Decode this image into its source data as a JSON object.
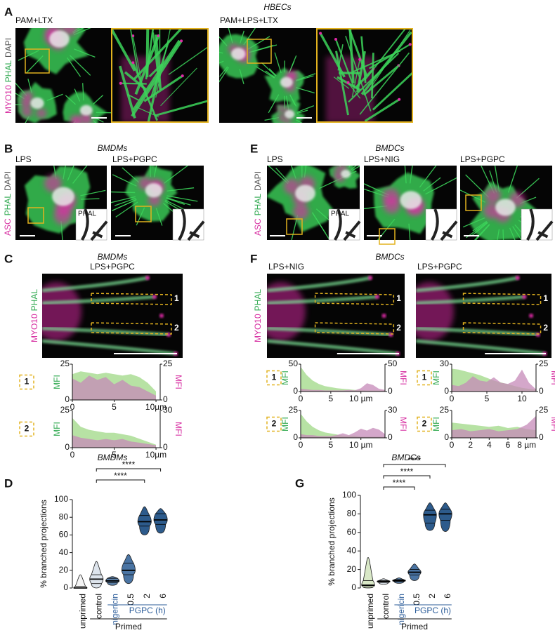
{
  "figure": {
    "profile_colors": [
      "#9fd886",
      "#c58ab8"
    ],
    "A": {
      "letter": "A",
      "title": "HBECs",
      "stain": [
        "MYO10",
        "PHAL",
        "DAPI"
      ],
      "conditions": [
        "PAM+LTX",
        "PAM+LPS+LTX"
      ]
    },
    "B": {
      "letter": "B",
      "title": "BMDMs",
      "stain": [
        "ASC",
        "PHAL",
        "DAPI"
      ],
      "conditions": [
        "LPS",
        "LPS+PGPC"
      ],
      "inset_label": "PHAL"
    },
    "E": {
      "letter": "E",
      "title": "BMDCs",
      "stain": [
        "ASC",
        "PHAL",
        "DAPI"
      ],
      "conditions": [
        "LPS",
        "LPS+NIG",
        "LPS+PGPC"
      ],
      "inset_label": "PHAL"
    },
    "C": {
      "letter": "C",
      "title": "BMDMs",
      "stain": [
        "MYO10",
        "PHAL"
      ],
      "images": [
        {
          "condition": "LPS+PGPC",
          "rois": [
            "1",
            "2"
          ],
          "profiles": [
            {
              "y_label": "MFI",
              "y2_label": "MFI",
              "xlim": [
                0,
                10.5
              ],
              "xticks": [
                0,
                5,
                {
                  "value": 10,
                  "label": "10µm"
                }
              ],
              "ylim": [
                0,
                25
              ],
              "yticks": [
                0,
                25
              ],
              "y2lim": [
                0,
                25
              ],
              "y2ticks": [
                0,
                25
              ],
              "x": [
                0,
                1,
                2,
                3,
                4,
                5,
                6,
                7,
                8,
                9,
                10
              ],
              "phal": [
                18,
                20,
                19,
                18,
                19,
                18,
                17,
                18,
                16,
                12,
                6
              ],
              "myo10": [
                15,
                12,
                17,
                14,
                16,
                11,
                14,
                10,
                9,
                6,
                3
              ]
            },
            {
              "y_label": "MFI",
              "y2_label": "MFI",
              "xlim": [
                0,
                10.5
              ],
              "xticks": [
                0,
                5,
                {
                  "value": 10,
                  "label": "10µm"
                }
              ],
              "ylim": [
                0,
                25
              ],
              "yticks": [
                0,
                25
              ],
              "y2lim": [
                0,
                30
              ],
              "y2ticks": [
                0,
                30
              ],
              "x": [
                0,
                1,
                2,
                3,
                4,
                5,
                6,
                7,
                8,
                9,
                10
              ],
              "phal": [
                20,
                14,
                12,
                11,
                10,
                10,
                9,
                8,
                6,
                4,
                2
              ],
              "myo10": [
                10,
                8,
                7,
                6,
                7,
                6,
                7,
                5,
                4,
                3,
                2
              ]
            }
          ]
        }
      ]
    },
    "F": {
      "letter": "F",
      "title": "BMDCs",
      "stain": [
        "MYO10",
        "PHAL"
      ],
      "images": [
        {
          "condition": "LPS+NIG",
          "rois": [
            "1",
            "2"
          ],
          "profiles": [
            {
              "y_label": "MFI",
              "y2_label": "MFI",
              "xlim": [
                0,
                14
              ],
              "xticks": [
                0,
                5,
                {
                  "value": 10,
                  "label": "10 µm"
                }
              ],
              "ylim": [
                0,
                50
              ],
              "yticks": [
                0,
                50
              ],
              "y2lim": [
                0,
                50
              ],
              "y2ticks": [
                0,
                50
              ],
              "x": [
                0,
                1,
                2,
                3,
                4,
                5,
                6,
                7,
                8,
                9,
                10,
                11,
                12,
                13,
                14
              ],
              "phal": [
                45,
                30,
                20,
                14,
                10,
                8,
                6,
                5,
                4,
                3,
                3,
                2,
                2,
                2,
                2
              ],
              "myo10": [
                5,
                4,
                3,
                3,
                2,
                2,
                2,
                2,
                3,
                2,
                6,
                15,
                12,
                5,
                3
              ]
            },
            {
              "y_label": "MFI",
              "y2_label": "MFI",
              "xlim": [
                0,
                14
              ],
              "xticks": [
                0,
                5,
                {
                  "value": 10,
                  "label": "10 µm"
                }
              ],
              "ylim": [
                0,
                25
              ],
              "yticks": [
                0,
                25
              ],
              "y2lim": [
                0,
                30
              ],
              "y2ticks": [
                0,
                30
              ],
              "x": [
                0,
                1,
                2,
                3,
                4,
                5,
                6,
                7,
                8,
                9,
                10,
                11,
                12,
                13,
                14
              ],
              "phal": [
                22,
                15,
                10,
                7,
                5,
                4,
                3,
                2,
                2,
                2,
                1,
                1,
                1,
                1,
                1
              ],
              "myo10": [
                4,
                3,
                3,
                2,
                2,
                2,
                3,
                5,
                3,
                6,
                10,
                8,
                11,
                9,
                4
              ]
            }
          ]
        },
        {
          "condition": "LPS+PGPC",
          "rois": [
            "1",
            "2"
          ],
          "profiles": [
            {
              "y_label": "MFI",
              "y2_label": "MFI",
              "xlim": [
                0,
                12
              ],
              "xticks": [
                0,
                5,
                10
              ],
              "ylim": [
                0,
                30
              ],
              "yticks": [
                0,
                30
              ],
              "y2lim": [
                0,
                25
              ],
              "y2ticks": [
                0,
                25
              ],
              "x": [
                0,
                1,
                2,
                3,
                4,
                5,
                6,
                7,
                8,
                9,
                10,
                11,
                12
              ],
              "phal": [
                25,
                24,
                22,
                20,
                18,
                15,
                12,
                10,
                8,
                6,
                4,
                3,
                2
              ],
              "myo10": [
                6,
                5,
                8,
                14,
                10,
                9,
                13,
                8,
                7,
                10,
                20,
                8,
                2
              ]
            },
            {
              "y_label": "MFI",
              "y2_label": "MFI",
              "xlim": [
                0,
                9
              ],
              "xticks": [
                0,
                2,
                4,
                6,
                {
                  "value": 8,
                  "label": "8 µm"
                }
              ],
              "ylim": [
                0,
                25
              ],
              "yticks": [
                0,
                25
              ],
              "y2lim": [
                0,
                25
              ],
              "y2ticks": [
                0,
                25
              ],
              "x": [
                0,
                1,
                2,
                3,
                4,
                5,
                6,
                7,
                8,
                9
              ],
              "phal": [
                14,
                13,
                12,
                11,
                10,
                11,
                9,
                10,
                8,
                7
              ],
              "myo10": [
                7,
                8,
                6,
                7,
                8,
                6,
                7,
                8,
                12,
                20
              ]
            }
          ]
        }
      ]
    },
    "D": {
      "letter": "D",
      "title": "BMDMs",
      "y_label": "% branched projections",
      "ylim": [
        0,
        100
      ],
      "yticks": [
        0,
        20,
        40,
        60,
        80,
        100
      ],
      "categories": [
        "unprimed",
        "control",
        "nigericin",
        "0.5",
        "2",
        "6"
      ],
      "group_label": "PGPC (h)",
      "primed_label": "Primed",
      "colors": [
        "#f4f4f4",
        "#dde4ec",
        "#5b7fa6",
        "#4a74a3",
        "#2d5b8c",
        "#2d5b8c"
      ],
      "min": [
        0,
        0,
        3,
        5,
        60,
        62
      ],
      "q1": [
        0,
        5,
        6,
        15,
        70,
        72
      ],
      "median": [
        0,
        10,
        8,
        20,
        75,
        77
      ],
      "q3": [
        2,
        15,
        11,
        28,
        82,
        84
      ],
      "max": [
        15,
        30,
        13,
        38,
        92,
        90
      ],
      "comparisons": [
        {
          "pair": [
            1,
            5
          ],
          "label": "****"
        },
        {
          "pair": [
            1,
            4
          ],
          "label": "****"
        }
      ]
    },
    "G": {
      "letter": "G",
      "title": "BMDCs",
      "y_label": "% branched projections",
      "ylim": [
        0,
        100
      ],
      "yticks": [
        0,
        20,
        40,
        60,
        80,
        100
      ],
      "categories": [
        "unprimed",
        "control",
        "nigericin",
        "0.5",
        "2",
        "6"
      ],
      "group_label": "PGPC (h)",
      "primed_label": "Primed",
      "colors": [
        "#d9e8c7",
        "#dde4ec",
        "#5b7fa6",
        "#4a74a3",
        "#2d5b8c",
        "#2d5b8c"
      ],
      "min": [
        0,
        4,
        5,
        8,
        62,
        61
      ],
      "q1": [
        1,
        6,
        7,
        14,
        70,
        73
      ],
      "median": [
        3,
        7,
        8,
        17,
        79,
        80
      ],
      "q3": [
        8,
        8,
        9,
        20,
        84,
        85
      ],
      "max": [
        33,
        10,
        11,
        26,
        92,
        92
      ],
      "comparisons": [
        {
          "pair": [
            1,
            5
          ],
          "label": "****"
        },
        {
          "pair": [
            1,
            4
          ],
          "label": "****"
        },
        {
          "pair": [
            1,
            3
          ],
          "label": "****"
        }
      ]
    }
  }
}
